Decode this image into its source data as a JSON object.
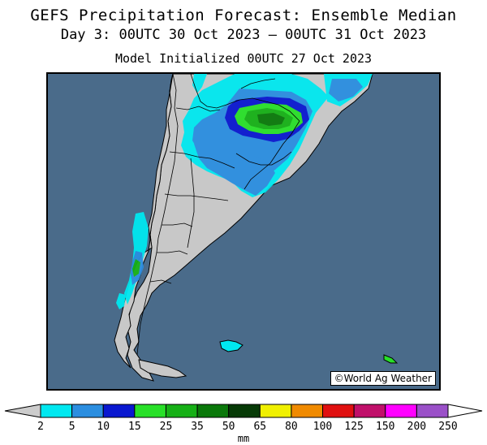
{
  "header": {
    "title": "GEFS Precipitation Forecast: Ensemble Median",
    "subtitle": "Day 3: 00UTC 30 Oct 2023 — 00UTC 31 Oct 2023",
    "init": "Model Initialized 00UTC 27 Oct 2023"
  },
  "map": {
    "credit": "©World Ag Weather",
    "ocean_color": "#4a6b8a",
    "land_color": "#c8c8c8"
  },
  "colorbar": {
    "unit": "mm",
    "ticks": [
      "2",
      "5",
      "10",
      "15",
      "25",
      "35",
      "50",
      "65",
      "80",
      "100",
      "125",
      "150",
      "200",
      "250"
    ],
    "colors": [
      "#00e8f0",
      "#2b8ee0",
      "#0a18d0",
      "#28e028",
      "#16b016",
      "#0a780a",
      "#063a06",
      "#f0f000",
      "#f08a00",
      "#e01010",
      "#c0106a",
      "#ff00ff",
      "#9a50c8"
    ],
    "under_color": "#cccccc",
    "over_color": "#ffffff"
  }
}
